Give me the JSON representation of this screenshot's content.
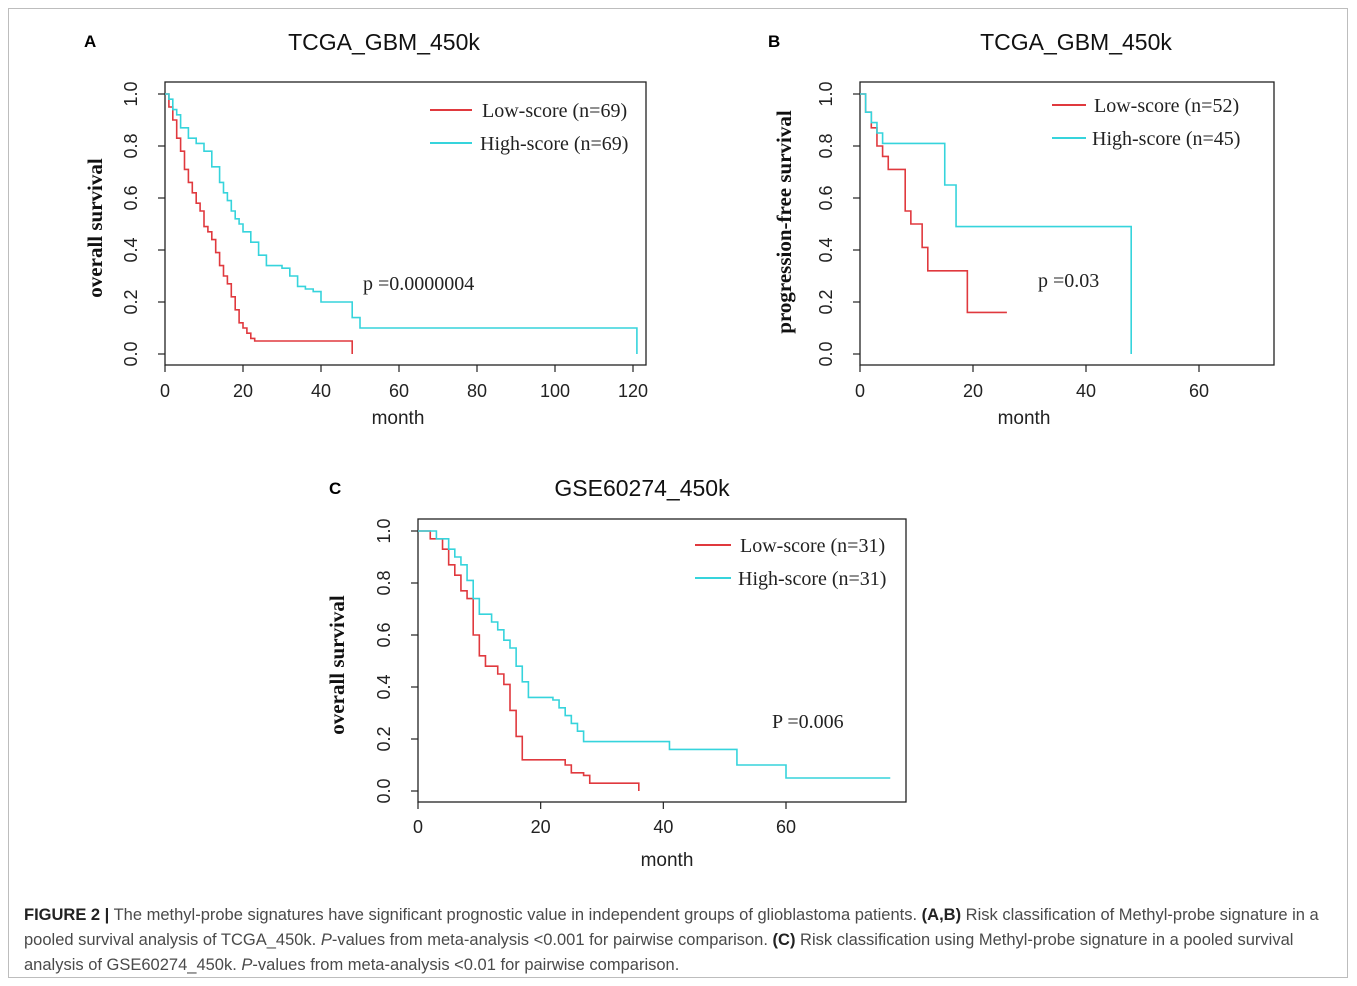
{
  "figure": {
    "caption_label": "FIGURE 2 |",
    "caption_parts": [
      {
        "t": "The methyl-probe signatures have significant prognostic value in independent groups of glioblastoma patients. "
      },
      {
        "t": "(A,B)",
        "b": true
      },
      {
        "t": " Risk classification of Methyl-probe signature in a pooled survival analysis of TCGA_450k. "
      },
      {
        "t": "P",
        "i": true
      },
      {
        "t": "-values from meta-analysis <0.001 for pairwise comparison. "
      },
      {
        "t": "(C)",
        "b": true
      },
      {
        "t": " Risk classification using Methyl-probe signature in a pooled survival analysis of GSE60274_450k. "
      },
      {
        "t": "P",
        "i": true
      },
      {
        "t": "-values from meta-analysis <0.01 for pairwise comparison."
      }
    ]
  },
  "colors": {
    "low": "#e0393e",
    "high": "#36d4dc"
  },
  "chart_data": [
    {
      "panel": "A",
      "type": "line",
      "title": "TCGA_GBM_450k",
      "xlabel": "month",
      "ylabel": "overall survival",
      "xlim": [
        0,
        120
      ],
      "ylim": [
        0,
        1
      ],
      "xticks": [
        0,
        20,
        40,
        60,
        80,
        100,
        120
      ],
      "yticks": [
        "0.0",
        "0.2",
        "0.4",
        "0.6",
        "0.8",
        "1.0"
      ],
      "legend_position": "top-right",
      "pvalue": "p =0.0000004",
      "series": [
        {
          "name": "Low-score (n=69)",
          "color": "#e0393e",
          "x": [
            0,
            1,
            2,
            3,
            4,
            5,
            6,
            7,
            8,
            9,
            10,
            11,
            12,
            13,
            14,
            15,
            16,
            17,
            18,
            19,
            20,
            21,
            22,
            23,
            48,
            48
          ],
          "y": [
            1.0,
            0.95,
            0.9,
            0.83,
            0.78,
            0.71,
            0.66,
            0.62,
            0.58,
            0.55,
            0.49,
            0.47,
            0.44,
            0.39,
            0.34,
            0.3,
            0.27,
            0.22,
            0.17,
            0.12,
            0.1,
            0.08,
            0.06,
            0.05,
            0.05,
            0.0
          ]
        },
        {
          "name": "High-score (n=69)",
          "color": "#36d4dc",
          "x": [
            0,
            1,
            2,
            3,
            4,
            6,
            8,
            10,
            12,
            14,
            15,
            16,
            17,
            18,
            19,
            20,
            22,
            24,
            26,
            28,
            30,
            32,
            34,
            36,
            38,
            40,
            46,
            48,
            50,
            120,
            121
          ],
          "y": [
            1.0,
            0.98,
            0.94,
            0.92,
            0.87,
            0.83,
            0.81,
            0.78,
            0.72,
            0.66,
            0.62,
            0.59,
            0.55,
            0.52,
            0.5,
            0.47,
            0.43,
            0.38,
            0.34,
            0.34,
            0.33,
            0.3,
            0.26,
            0.25,
            0.24,
            0.2,
            0.2,
            0.14,
            0.1,
            0.1,
            0.0
          ]
        }
      ]
    },
    {
      "panel": "B",
      "type": "line",
      "title": "TCGA_GBM_450k",
      "xlabel": "month",
      "ylabel": "progression-free survival",
      "xlim": [
        0,
        72
      ],
      "ylim": [
        0,
        1
      ],
      "xticks": [
        0,
        20,
        40,
        60
      ],
      "yticks": [
        "0.0",
        "0.2",
        "0.4",
        "0.6",
        "0.8",
        "1.0"
      ],
      "legend_position": "top-right",
      "pvalue": "p =0.03",
      "series": [
        {
          "name": "Low-score (n=52)",
          "color": "#e0393e",
          "x": [
            0,
            1,
            2,
            3,
            4,
            5,
            6,
            8,
            9,
            11,
            12,
            13,
            19,
            26
          ],
          "y": [
            1.0,
            0.93,
            0.87,
            0.8,
            0.76,
            0.71,
            0.71,
            0.55,
            0.5,
            0.41,
            0.32,
            0.32,
            0.16,
            0.16
          ]
        },
        {
          "name": "High-score (n=45)",
          "color": "#36d4dc",
          "x": [
            0,
            1,
            2,
            3,
            4,
            15,
            17,
            48,
            48
          ],
          "y": [
            1.0,
            0.93,
            0.89,
            0.85,
            0.81,
            0.65,
            0.49,
            0.49,
            0.0
          ]
        }
      ]
    },
    {
      "panel": "C",
      "type": "line",
      "title": "GSE60274_450k",
      "xlabel": "month",
      "ylabel": "overall survival",
      "xlim": [
        0,
        78
      ],
      "ylim": [
        0,
        1
      ],
      "xticks": [
        0,
        20,
        40,
        60
      ],
      "yticks": [
        "0.0",
        "0.2",
        "0.4",
        "0.6",
        "0.8",
        "1.0"
      ],
      "legend_position": "top-right",
      "pvalue": "P =0.006",
      "series": [
        {
          "name": "Low-score (n=31)",
          "color": "#e0393e",
          "x": [
            0,
            2,
            4,
            5,
            6,
            7,
            8,
            9,
            10,
            11,
            12,
            13,
            14,
            15,
            16,
            17,
            18,
            22,
            24,
            25,
            27,
            28,
            36,
            36
          ],
          "y": [
            1.0,
            0.97,
            0.93,
            0.87,
            0.83,
            0.77,
            0.74,
            0.6,
            0.52,
            0.48,
            0.48,
            0.45,
            0.41,
            0.31,
            0.21,
            0.12,
            0.12,
            0.12,
            0.1,
            0.07,
            0.06,
            0.03,
            0.03,
            0.0
          ]
        },
        {
          "name": "High-score (n=31)",
          "color": "#36d4dc",
          "x": [
            0,
            3,
            5,
            6,
            7,
            8,
            9,
            10,
            12,
            13,
            14,
            15,
            16,
            17,
            18,
            22,
            23,
            24,
            25,
            26,
            27,
            28,
            33,
            41,
            52,
            60,
            77
          ],
          "y": [
            1.0,
            0.97,
            0.93,
            0.9,
            0.87,
            0.81,
            0.74,
            0.68,
            0.65,
            0.62,
            0.58,
            0.55,
            0.48,
            0.42,
            0.36,
            0.35,
            0.32,
            0.29,
            0.26,
            0.23,
            0.19,
            0.19,
            0.19,
            0.16,
            0.1,
            0.05,
            0.05
          ]
        }
      ]
    }
  ]
}
